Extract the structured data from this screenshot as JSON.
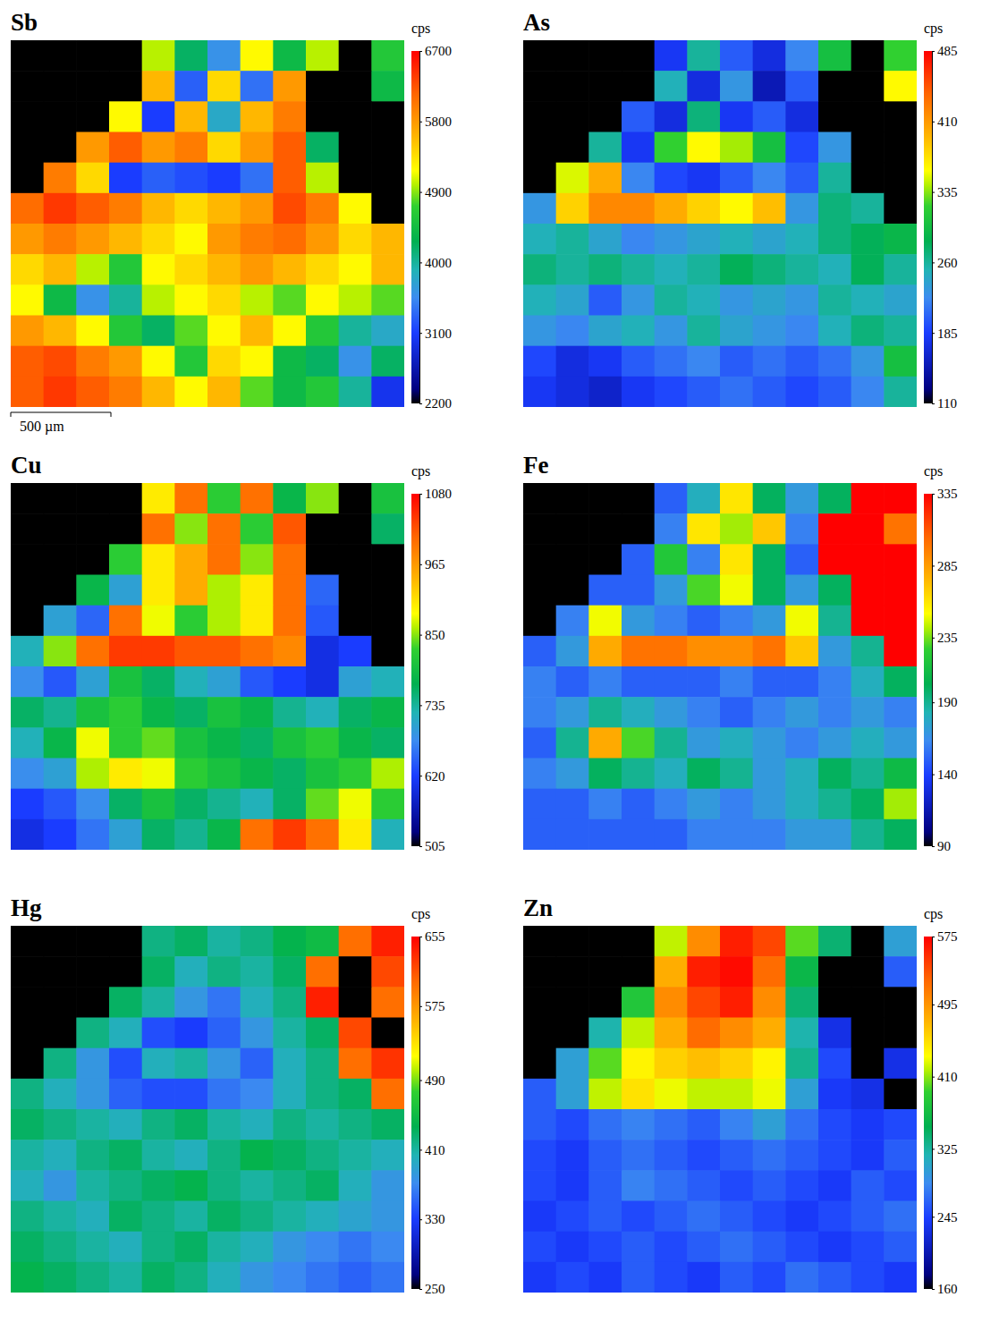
{
  "chart_data": [
    {
      "type": "heatmap",
      "title": "Sb",
      "tick_labels": false,
      "annotation": "500 µm",
      "colorbar": {
        "label": "cps",
        "range": [
          2200,
          6700
        ],
        "ticks": [
          2200,
          3100,
          4000,
          4900,
          5800,
          6700
        ]
      },
      "cells": [
        [
          2200,
          2200,
          2200,
          2200,
          5000,
          4200,
          3600,
          5200,
          4400,
          5000,
          2200,
          4600
        ],
        [
          2200,
          2200,
          2200,
          2200,
          5600,
          3300,
          5400,
          3400,
          5800,
          2200,
          2200,
          4400
        ],
        [
          2200,
          2200,
          2200,
          5200,
          3100,
          5600,
          3800,
          5600,
          6000,
          2200,
          2200,
          2200
        ],
        [
          2200,
          2200,
          5800,
          6200,
          5800,
          6000,
          5400,
          5800,
          6200,
          4200,
          2200,
          2200
        ],
        [
          2200,
          6000,
          5400,
          3100,
          3300,
          3200,
          3100,
          3400,
          6200,
          5000,
          2200,
          2200
        ],
        [
          6100,
          6400,
          6200,
          6000,
          5600,
          5400,
          5600,
          5800,
          6300,
          6000,
          5200,
          2200
        ],
        [
          5800,
          6000,
          5800,
          5600,
          5400,
          5200,
          5800,
          6000,
          6100,
          5800,
          5400,
          5600
        ],
        [
          5400,
          5600,
          5000,
          4600,
          5200,
          5400,
          5600,
          5800,
          5600,
          5400,
          5200,
          5600
        ],
        [
          5200,
          4400,
          3600,
          4000,
          5000,
          5200,
          5400,
          5000,
          4800,
          5200,
          5000,
          4800
        ],
        [
          5800,
          5600,
          5200,
          4600,
          4200,
          4800,
          5200,
          5600,
          5200,
          4600,
          4000,
          3800
        ],
        [
          6200,
          6300,
          6000,
          5800,
          5200,
          4600,
          5400,
          5200,
          4400,
          4200,
          3600,
          4200
        ],
        [
          6200,
          6400,
          6200,
          6000,
          5600,
          5200,
          5600,
          4800,
          4400,
          4600,
          4000,
          3000
        ]
      ]
    },
    {
      "type": "heatmap",
      "title": "As",
      "tick_labels": false,
      "colorbar": {
        "label": "cps",
        "range": [
          110,
          485
        ],
        "ticks": [
          110,
          185,
          260,
          335,
          410,
          485
        ]
      },
      "cells": [
        [
          110,
          110,
          110,
          110,
          180,
          260,
          200,
          170,
          220,
          300,
          110,
          320
        ],
        [
          110,
          110,
          110,
          110,
          250,
          170,
          230,
          150,
          200,
          110,
          110,
          360
        ],
        [
          110,
          110,
          110,
          200,
          170,
          270,
          180,
          200,
          170,
          110,
          110,
          110
        ],
        [
          110,
          110,
          260,
          180,
          320,
          360,
          340,
          300,
          190,
          230,
          110,
          110
        ],
        [
          110,
          350,
          400,
          220,
          190,
          180,
          200,
          220,
          200,
          260,
          110,
          110
        ],
        [
          230,
          380,
          420,
          420,
          400,
          380,
          360,
          390,
          230,
          270,
          260,
          110
        ],
        [
          250,
          260,
          240,
          220,
          230,
          240,
          250,
          240,
          250,
          270,
          280,
          290
        ],
        [
          270,
          260,
          270,
          260,
          250,
          260,
          280,
          270,
          260,
          250,
          280,
          260
        ],
        [
          250,
          240,
          200,
          230,
          260,
          250,
          230,
          240,
          230,
          260,
          250,
          240
        ],
        [
          230,
          220,
          240,
          250,
          230,
          260,
          240,
          230,
          220,
          250,
          270,
          260
        ],
        [
          190,
          170,
          180,
          200,
          210,
          220,
          200,
          210,
          200,
          210,
          230,
          300
        ],
        [
          180,
          170,
          160,
          180,
          190,
          200,
          210,
          200,
          190,
          200,
          220,
          260
        ]
      ]
    },
    {
      "type": "heatmap",
      "title": "Cu",
      "tick_labels": false,
      "colorbar": {
        "label": "cps",
        "range": [
          505,
          1080
        ],
        "ticks": [
          505,
          620,
          735,
          850,
          965,
          1080
        ]
      },
      "cells": [
        [
          505,
          505,
          505,
          505,
          900,
          1000,
          820,
          1000,
          780,
          850,
          505,
          800
        ],
        [
          505,
          505,
          505,
          505,
          1000,
          850,
          1000,
          820,
          1020,
          505,
          505,
          760
        ],
        [
          505,
          505,
          505,
          820,
          900,
          950,
          1000,
          850,
          1000,
          505,
          505,
          505
        ],
        [
          505,
          505,
          780,
          700,
          900,
          950,
          860,
          900,
          1000,
          650,
          505,
          505
        ],
        [
          505,
          700,
          650,
          1000,
          880,
          820,
          860,
          900,
          1000,
          640,
          505,
          505
        ],
        [
          720,
          850,
          1000,
          1040,
          1040,
          1020,
          1020,
          1000,
          980,
          600,
          620,
          505
        ],
        [
          680,
          640,
          700,
          800,
          760,
          720,
          700,
          640,
          620,
          600,
          700,
          720
        ],
        [
          760,
          740,
          800,
          820,
          780,
          760,
          800,
          780,
          740,
          720,
          760,
          780
        ],
        [
          720,
          780,
          880,
          820,
          840,
          800,
          780,
          760,
          800,
          820,
          780,
          760
        ],
        [
          680,
          700,
          860,
          900,
          880,
          820,
          800,
          780,
          760,
          800,
          820,
          860
        ],
        [
          620,
          640,
          680,
          760,
          800,
          760,
          740,
          720,
          760,
          840,
          880,
          820
        ],
        [
          600,
          620,
          660,
          700,
          760,
          740,
          780,
          1000,
          1040,
          1000,
          900,
          720
        ]
      ]
    },
    {
      "type": "heatmap",
      "title": "Fe",
      "tick_labels": false,
      "colorbar": {
        "label": "cps",
        "range": [
          90,
          335
        ],
        "ticks": [
          90,
          140,
          190,
          235,
          285,
          335
        ]
      },
      "cells": [
        [
          90,
          90,
          90,
          90,
          150,
          180,
          260,
          200,
          170,
          200,
          335,
          335
        ],
        [
          90,
          90,
          90,
          90,
          160,
          260,
          240,
          270,
          160,
          335,
          335,
          300
        ],
        [
          90,
          90,
          90,
          150,
          220,
          160,
          260,
          200,
          150,
          335,
          335,
          335
        ],
        [
          90,
          90,
          150,
          150,
          170,
          230,
          250,
          200,
          170,
          200,
          335,
          335
        ],
        [
          90,
          160,
          250,
          170,
          160,
          150,
          160,
          170,
          250,
          190,
          335,
          335
        ],
        [
          150,
          170,
          280,
          300,
          300,
          290,
          290,
          300,
          270,
          170,
          190,
          335
        ],
        [
          160,
          150,
          160,
          150,
          150,
          150,
          160,
          150,
          150,
          160,
          180,
          200
        ],
        [
          160,
          170,
          190,
          180,
          170,
          160,
          150,
          160,
          170,
          160,
          170,
          160
        ],
        [
          150,
          190,
          280,
          230,
          190,
          170,
          180,
          170,
          160,
          170,
          180,
          170
        ],
        [
          160,
          170,
          200,
          190,
          180,
          200,
          190,
          170,
          180,
          200,
          190,
          210
        ],
        [
          150,
          150,
          160,
          150,
          160,
          170,
          160,
          170,
          180,
          190,
          200,
          240
        ],
        [
          150,
          150,
          150,
          150,
          150,
          160,
          160,
          160,
          170,
          170,
          190,
          200
        ]
      ]
    },
    {
      "type": "heatmap",
      "title": "Hg",
      "tick_labels": false,
      "colorbar": {
        "label": "cps",
        "range": [
          250,
          655
        ],
        "ticks": [
          250,
          330,
          410,
          490,
          575,
          655
        ]
      },
      "cells": [
        [
          250,
          250,
          250,
          250,
          420,
          430,
          410,
          420,
          440,
          450,
          600,
          640
        ],
        [
          250,
          250,
          250,
          250,
          430,
          400,
          420,
          410,
          430,
          600,
          250,
          620
        ],
        [
          250,
          250,
          250,
          430,
          410,
          380,
          360,
          400,
          420,
          640,
          250,
          600
        ],
        [
          250,
          250,
          420,
          400,
          340,
          330,
          350,
          380,
          410,
          430,
          620,
          250
        ],
        [
          250,
          420,
          380,
          340,
          400,
          410,
          380,
          350,
          400,
          420,
          600,
          630
        ],
        [
          420,
          400,
          380,
          350,
          340,
          340,
          360,
          370,
          400,
          420,
          430,
          600
        ],
        [
          430,
          420,
          410,
          400,
          420,
          430,
          410,
          400,
          420,
          410,
          420,
          430
        ],
        [
          410,
          400,
          420,
          430,
          410,
          400,
          420,
          440,
          430,
          420,
          410,
          400
        ],
        [
          400,
          380,
          410,
          420,
          430,
          440,
          420,
          410,
          420,
          430,
          400,
          380
        ],
        [
          420,
          410,
          400,
          430,
          420,
          410,
          430,
          420,
          410,
          400,
          390,
          380
        ],
        [
          430,
          420,
          410,
          400,
          420,
          430,
          410,
          400,
          380,
          370,
          360,
          370
        ],
        [
          440,
          430,
          420,
          410,
          430,
          420,
          400,
          380,
          370,
          360,
          350,
          360
        ]
      ]
    },
    {
      "type": "heatmap",
      "title": "Zn",
      "tick_labels": false,
      "colorbar": {
        "label": "cps",
        "range": [
          160,
          575
        ],
        "ticks": [
          160,
          245,
          325,
          410,
          495,
          575
        ]
      },
      "cells": [
        [
          160,
          160,
          160,
          160,
          420,
          500,
          560,
          540,
          400,
          340,
          160,
          300
        ],
        [
          160,
          160,
          160,
          160,
          480,
          560,
          570,
          520,
          360,
          160,
          160,
          260
        ],
        [
          160,
          160,
          160,
          380,
          500,
          540,
          560,
          500,
          340,
          160,
          160,
          160
        ],
        [
          160,
          160,
          320,
          420,
          480,
          520,
          500,
          480,
          320,
          230,
          160,
          160
        ],
        [
          160,
          300,
          400,
          440,
          460,
          470,
          460,
          440,
          330,
          250,
          160,
          230
        ],
        [
          260,
          300,
          420,
          450,
          430,
          420,
          420,
          430,
          300,
          240,
          230,
          160
        ],
        [
          260,
          250,
          270,
          280,
          270,
          260,
          280,
          300,
          270,
          250,
          240,
          250
        ],
        [
          250,
          240,
          260,
          270,
          260,
          250,
          260,
          270,
          260,
          250,
          240,
          260
        ],
        [
          250,
          240,
          260,
          280,
          270,
          260,
          250,
          260,
          250,
          240,
          260,
          250
        ],
        [
          240,
          250,
          260,
          250,
          260,
          270,
          260,
          250,
          240,
          250,
          260,
          270
        ],
        [
          250,
          240,
          250,
          260,
          250,
          260,
          270,
          260,
          250,
          240,
          250,
          260
        ],
        [
          240,
          250,
          240,
          260,
          250,
          240,
          260,
          250,
          270,
          260,
          250,
          240
        ]
      ]
    }
  ]
}
